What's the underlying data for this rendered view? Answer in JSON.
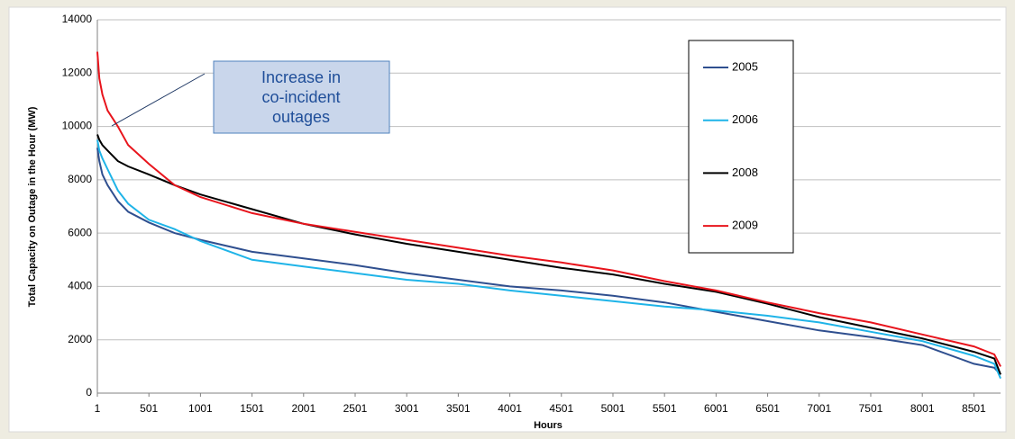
{
  "chart_data": {
    "type": "line",
    "y_label": "Total Capacity on Outage in the Hour (MW)",
    "x_label": "Hours",
    "x": [
      1,
      20,
      50,
      100,
      200,
      300,
      500,
      750,
      1001,
      1501,
      2001,
      2501,
      3001,
      3501,
      4001,
      4501,
      5001,
      5501,
      6001,
      6501,
      7001,
      7501,
      8001,
      8501,
      8700,
      8760
    ],
    "series": [
      {
        "name": "2005",
        "color": "#2f4f8f",
        "values": [
          9200,
          8700,
          8200,
          7800,
          7200,
          6800,
          6400,
          6000,
          5750,
          5300,
          5050,
          4800,
          4500,
          4250,
          4000,
          3850,
          3650,
          3400,
          3050,
          2700,
          2350,
          2100,
          1800,
          1100,
          950,
          700
        ]
      },
      {
        "name": "2006",
        "color": "#1fb4e8",
        "values": [
          9500,
          9100,
          8800,
          8400,
          7600,
          7100,
          6500,
          6150,
          5700,
          5000,
          4750,
          4500,
          4250,
          4100,
          3850,
          3650,
          3450,
          3250,
          3100,
          2900,
          2650,
          2300,
          1950,
          1400,
          1100,
          550
        ]
      },
      {
        "name": "2008",
        "color": "#000000",
        "values": [
          9700,
          9500,
          9300,
          9100,
          8700,
          8500,
          8200,
          7800,
          7450,
          6900,
          6350,
          5950,
          5600,
          5300,
          5000,
          4700,
          4450,
          4100,
          3800,
          3350,
          2850,
          2450,
          2050,
          1550,
          1300,
          700
        ]
      },
      {
        "name": "2009",
        "color": "#e8141c",
        "values": [
          12800,
          11800,
          11200,
          10600,
          10000,
          9300,
          8600,
          7800,
          7350,
          6750,
          6350,
          6050,
          5750,
          5450,
          5150,
          4900,
          4600,
          4200,
          3850,
          3400,
          3000,
          2650,
          2200,
          1750,
          1450,
          1000
        ]
      }
    ],
    "xlim": [
      1,
      8760
    ],
    "xticks": [
      1,
      501,
      1001,
      1501,
      2001,
      2501,
      3001,
      3501,
      4001,
      4501,
      5001,
      5501,
      6001,
      6501,
      7001,
      7501,
      8001,
      8501
    ],
    "ylim": [
      0,
      14000
    ],
    "yticks": [
      0,
      2000,
      4000,
      6000,
      8000,
      10000,
      12000,
      14000
    ],
    "grid": true,
    "legend": "right",
    "annotation": {
      "lines": [
        "Increase in",
        "co-incident",
        "outages"
      ]
    }
  }
}
